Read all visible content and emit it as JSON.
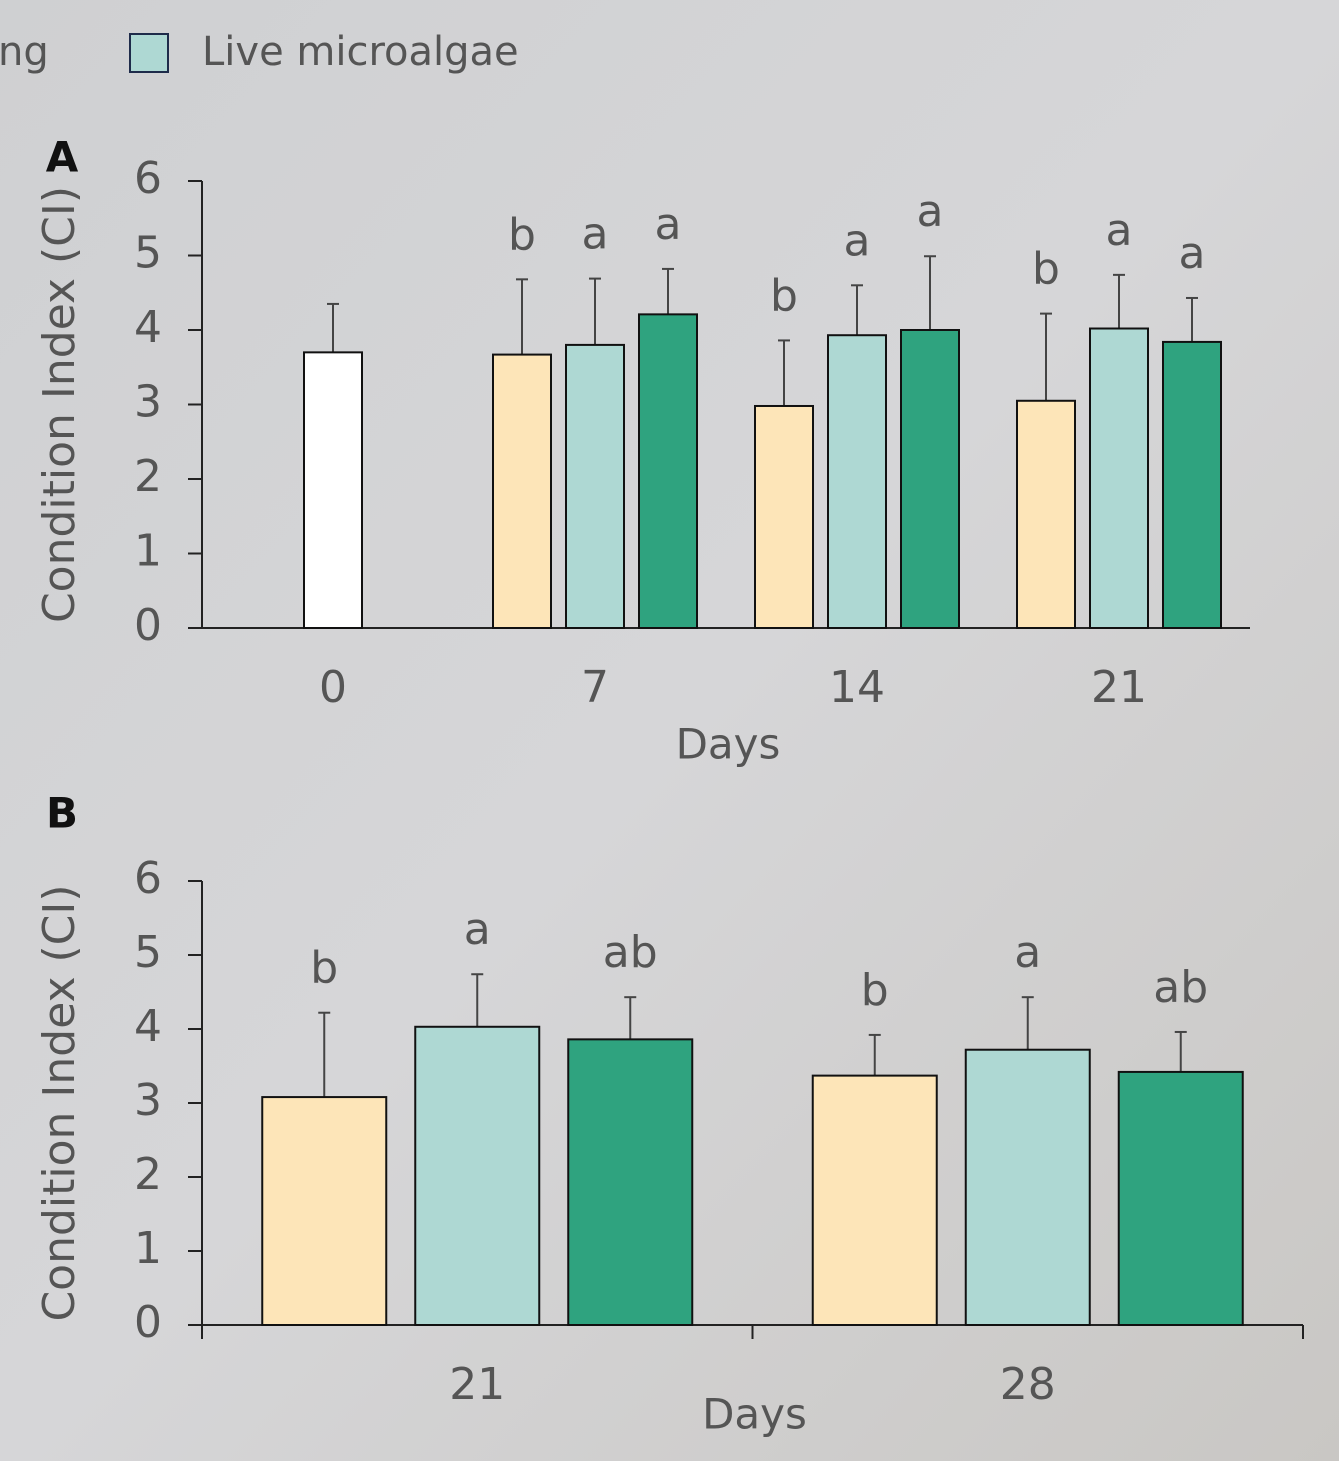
{
  "legend": [
    {
      "label": "ng"
    },
    {
      "label": "Live microalgae",
      "color": "#aed8d3"
    }
  ],
  "chart_data": [
    {
      "type": "bar",
      "panel": "A",
      "categories": [
        "0",
        "7",
        "14",
        "21"
      ],
      "xlabel": "Days",
      "ylabel": "Condition Index (CI)",
      "ylim": [
        0,
        6
      ],
      "yticks": [
        0,
        1,
        2,
        3,
        4,
        5,
        6
      ],
      "series": [
        {
          "color": "#ffffff",
          "values": [
            3.7,
            null,
            null,
            null
          ],
          "errors": [
            0.65,
            null,
            null,
            null
          ]
        },
        {
          "color": "#fde5b8",
          "values": [
            null,
            3.67,
            2.98,
            3.05
          ],
          "errors": [
            null,
            1.01,
            0.88,
            1.17
          ],
          "labels": [
            null,
            "b",
            "b",
            "b"
          ]
        },
        {
          "color": "#aed8d3",
          "values": [
            null,
            3.8,
            3.93,
            4.02
          ],
          "errors": [
            null,
            0.89,
            0.67,
            0.72
          ],
          "labels": [
            null,
            "a",
            "a",
            "a"
          ]
        },
        {
          "color": "#2fa37f",
          "values": [
            null,
            4.21,
            4.0,
            3.84
          ],
          "errors": [
            null,
            0.61,
            0.99,
            0.59
          ],
          "labels": [
            null,
            "a",
            "a",
            "a"
          ]
        }
      ]
    },
    {
      "type": "bar",
      "panel": "B",
      "categories": [
        "21",
        "28"
      ],
      "xlabel": "Days",
      "ylabel": "Condition Index (CI)",
      "ylim": [
        0,
        6
      ],
      "yticks": [
        0,
        1,
        2,
        3,
        4,
        5,
        6
      ],
      "series": [
        {
          "color": "#fde5b8",
          "values": [
            3.08,
            3.37
          ],
          "errors": [
            1.14,
            0.55
          ],
          "labels": [
            "b",
            "b"
          ]
        },
        {
          "color": "#aed8d3",
          "values": [
            4.03,
            3.72
          ],
          "errors": [
            0.71,
            0.71
          ],
          "labels": [
            "a",
            "a"
          ]
        },
        {
          "color": "#2fa37f",
          "values": [
            3.86,
            3.42
          ],
          "errors": [
            0.57,
            0.54
          ],
          "labels": [
            "ab",
            "ab"
          ]
        }
      ]
    }
  ]
}
